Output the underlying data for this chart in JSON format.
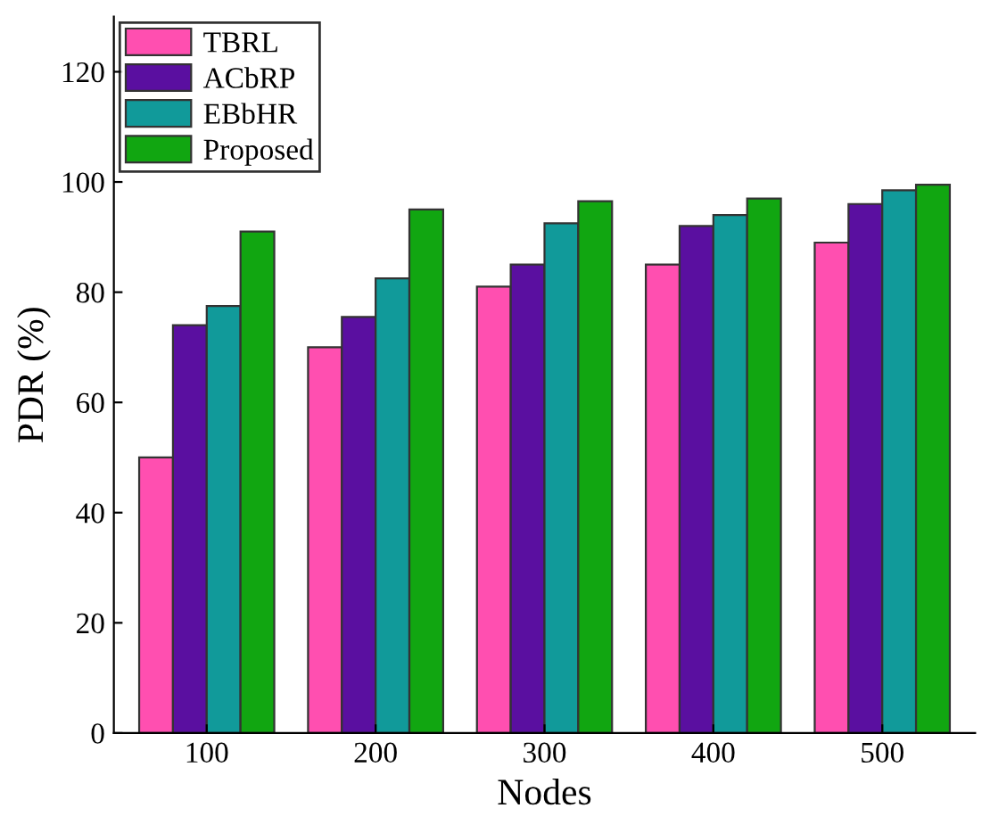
{
  "chart_data": {
    "type": "bar",
    "xlabel": "Nodes",
    "ylabel": "PDR (%)",
    "categories": [
      "100",
      "200",
      "300",
      "400",
      "500"
    ],
    "series": [
      {
        "name": "TBRL",
        "color": "#ff4fb0",
        "values": [
          50,
          70,
          81,
          85,
          89
        ]
      },
      {
        "name": "ACbRP",
        "color": "#5a0fa0",
        "values": [
          74,
          75.5,
          85,
          92,
          96
        ]
      },
      {
        "name": "EBbHR",
        "color": "#119a9a",
        "values": [
          77.5,
          82.5,
          92.5,
          94,
          98.5
        ]
      },
      {
        "name": "Proposed",
        "color": "#11a611",
        "values": [
          91,
          95,
          96.5,
          97,
          99.5
        ]
      }
    ],
    "ylim": [
      0,
      130
    ],
    "yticks": [
      0,
      20,
      40,
      60,
      80,
      100,
      120
    ],
    "grid": false,
    "legend": "top left"
  }
}
